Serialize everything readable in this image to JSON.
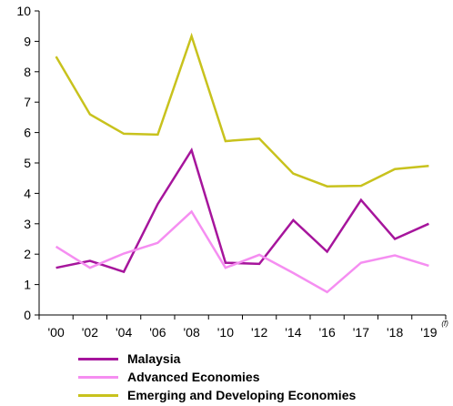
{
  "chart_data": {
    "type": "line",
    "title": "",
    "xlabel": "",
    "ylabel": "",
    "categories": [
      "'00",
      "'02",
      "'04",
      "'06",
      "'08",
      "'10",
      "'12",
      "'14",
      "'16",
      "'17",
      "'18",
      "'19"
    ],
    "last_category_superscript": "(f)",
    "ylim": [
      0,
      10
    ],
    "yticks": [
      0,
      1,
      2,
      3,
      4,
      5,
      6,
      7,
      8,
      9,
      10
    ],
    "grid": false,
    "legend_position": "bottom",
    "series": [
      {
        "name": "Malaysia",
        "color": "#a6159c",
        "values": [
          1.55,
          1.78,
          1.42,
          3.65,
          5.42,
          1.72,
          1.68,
          3.12,
          2.08,
          3.78,
          2.5,
          3.0
        ]
      },
      {
        "name": "Advanced Economies",
        "color": "#f58ef1",
        "values": [
          2.25,
          1.55,
          2.02,
          2.37,
          3.4,
          1.55,
          1.98,
          1.38,
          0.75,
          1.72,
          1.96,
          1.62
        ]
      },
      {
        "name": "Emerging and Developing Economies",
        "color": "#c8c21d",
        "values": [
          8.5,
          6.6,
          5.96,
          5.93,
          9.17,
          5.72,
          5.8,
          4.65,
          4.23,
          4.25,
          4.8,
          4.9
        ]
      }
    ]
  }
}
